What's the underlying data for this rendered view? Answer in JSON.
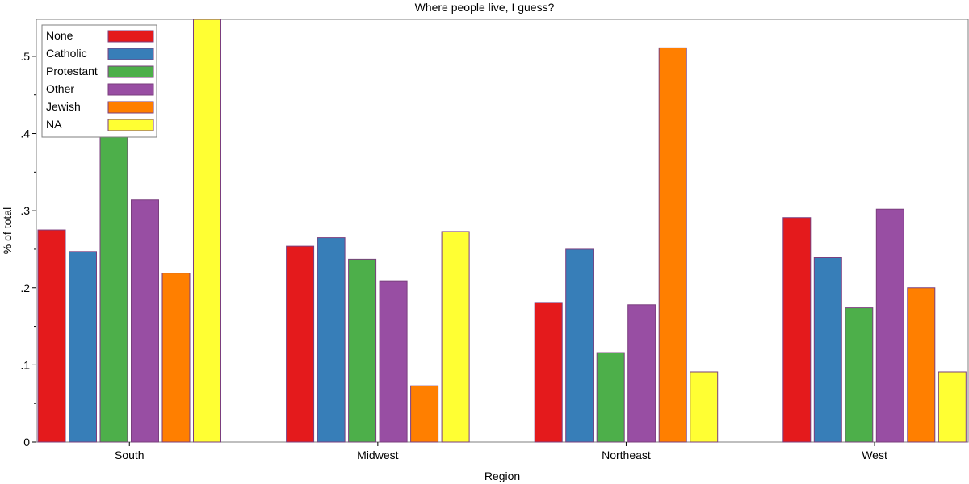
{
  "chart_data": {
    "type": "bar",
    "title": "Where people live, I guess?",
    "xlabel": "Region",
    "ylabel": "% of total",
    "categories": [
      "South",
      "Midwest",
      "Northeast",
      "West"
    ],
    "ylim": [
      0,
      0.548
    ],
    "yticks": [
      0,
      0.1,
      0.2,
      0.3,
      0.4,
      0.5
    ],
    "ytick_labels": [
      "0",
      ".1",
      ".2",
      ".3",
      ".4",
      ".5"
    ],
    "grid": false,
    "legend_position": "top-left",
    "series": [
      {
        "name": "None",
        "color": "#e41a1c",
        "values": [
          0.275,
          0.254,
          0.181,
          0.291
        ]
      },
      {
        "name": "Catholic",
        "color": "#377eb8",
        "values": [
          0.247,
          0.265,
          0.25,
          0.239
        ]
      },
      {
        "name": "Protestant",
        "color": "#4daf4a",
        "values": [
          0.472,
          0.237,
          0.116,
          0.174
        ]
      },
      {
        "name": "Other",
        "color": "#984ea3",
        "values": [
          0.314,
          0.209,
          0.178,
          0.302
        ]
      },
      {
        "name": "Jewish",
        "color": "#ff7f00",
        "values": [
          0.219,
          0.073,
          0.511,
          0.2
        ]
      },
      {
        "name": "NA",
        "color": "#ffff33",
        "values": [
          0.548,
          0.273,
          0.091,
          0.091
        ]
      }
    ]
  }
}
